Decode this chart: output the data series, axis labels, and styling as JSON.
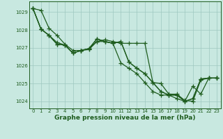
{
  "xlabel": "Graphe pression niveau de la mer (hPa)",
  "x": [
    0,
    1,
    2,
    3,
    4,
    5,
    6,
    7,
    8,
    9,
    10,
    11,
    12,
    13,
    14,
    15,
    16,
    17,
    18,
    19,
    20,
    21,
    22,
    23
  ],
  "line1": [
    1029.2,
    1029.1,
    1028.1,
    1027.7,
    1027.2,
    1026.85,
    1026.85,
    1026.9,
    1027.35,
    1027.45,
    1027.35,
    1027.25,
    1027.25,
    1027.25,
    1027.25,
    1025.05,
    1025.0,
    1024.4,
    1024.4,
    1024.05,
    1024.0,
    1025.2,
    1025.3,
    1025.3
  ],
  "line2": [
    1029.2,
    1028.05,
    1027.7,
    1027.3,
    1027.15,
    1026.7,
    1026.85,
    1026.95,
    1027.35,
    1027.35,
    1027.25,
    1026.15,
    1025.85,
    1025.55,
    1025.05,
    1024.55,
    1024.35,
    1024.35,
    1024.15,
    1024.0,
    1024.15,
    1025.25,
    1025.3,
    1025.3
  ],
  "line3": [
    1029.2,
    1028.05,
    1027.7,
    1027.2,
    1027.15,
    1026.7,
    1026.85,
    1026.95,
    1027.5,
    1027.35,
    1027.25,
    1027.35,
    1026.2,
    1025.85,
    1025.55,
    1025.05,
    1024.55,
    1024.35,
    1024.35,
    1024.0,
    1024.15,
    1025.25,
    1025.3,
    1025.3
  ],
  "line4": [
    1029.2,
    1028.05,
    1027.7,
    1027.2,
    1027.15,
    1026.7,
    1026.85,
    1026.95,
    1027.5,
    1027.35,
    1027.25,
    1027.35,
    1026.2,
    1025.85,
    1025.55,
    1025.05,
    1024.55,
    1024.35,
    1024.35,
    1024.0,
    1024.85,
    1024.4,
    1025.3,
    1025.3
  ],
  "line_color": "#1e5c1e",
  "bg_color": "#c8e8e0",
  "grid_color": "#9ec8c0",
  "ylim_min": 1023.6,
  "ylim_max": 1029.6,
  "yticks": [
    1024,
    1025,
    1026,
    1027,
    1028,
    1029
  ],
  "xticks": [
    0,
    1,
    2,
    3,
    4,
    5,
    6,
    7,
    8,
    9,
    10,
    11,
    12,
    13,
    14,
    15,
    16,
    17,
    18,
    19,
    20,
    21,
    22,
    23
  ],
  "marker": "+",
  "markersize": 4,
  "linewidth": 0.9,
  "tick_fontsize": 5.0,
  "xlabel_fontsize": 6.5
}
